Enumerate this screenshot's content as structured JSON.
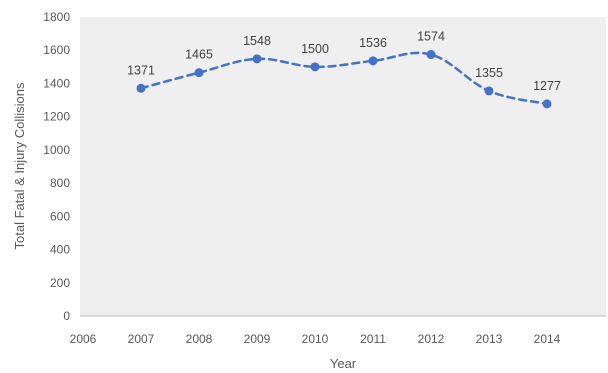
{
  "chart_data": {
    "type": "line",
    "title": "",
    "xlabel": "Year",
    "ylabel": "Total Fatal & Injury Collisions",
    "x_ticks": [
      "2006",
      "2007",
      "2008",
      "2009",
      "2010",
      "2011",
      "2012",
      "2013",
      "2014"
    ],
    "y_ticks": [
      "0",
      "200",
      "400",
      "600",
      "800",
      "1000",
      "1200",
      "1400",
      "1600",
      "1800"
    ],
    "xlim": [
      2006,
      2015
    ],
    "ylim": [
      0,
      1800
    ],
    "grid": false,
    "line_style": "dashed",
    "series": [
      {
        "x": [
          2007,
          2008,
          2009,
          2010,
          2011,
          2012,
          2013,
          2014
        ],
        "values": [
          1371,
          1465,
          1548,
          1500,
          1536,
          1574,
          1355,
          1277
        ],
        "labels": [
          "1371",
          "1465",
          "1548",
          "1500",
          "1536",
          "1574",
          "1355",
          "1277"
        ]
      }
    ],
    "colors": {
      "plot_background": "#efefef",
      "series": "#4472c4",
      "axis": "#bfbfbf"
    }
  }
}
